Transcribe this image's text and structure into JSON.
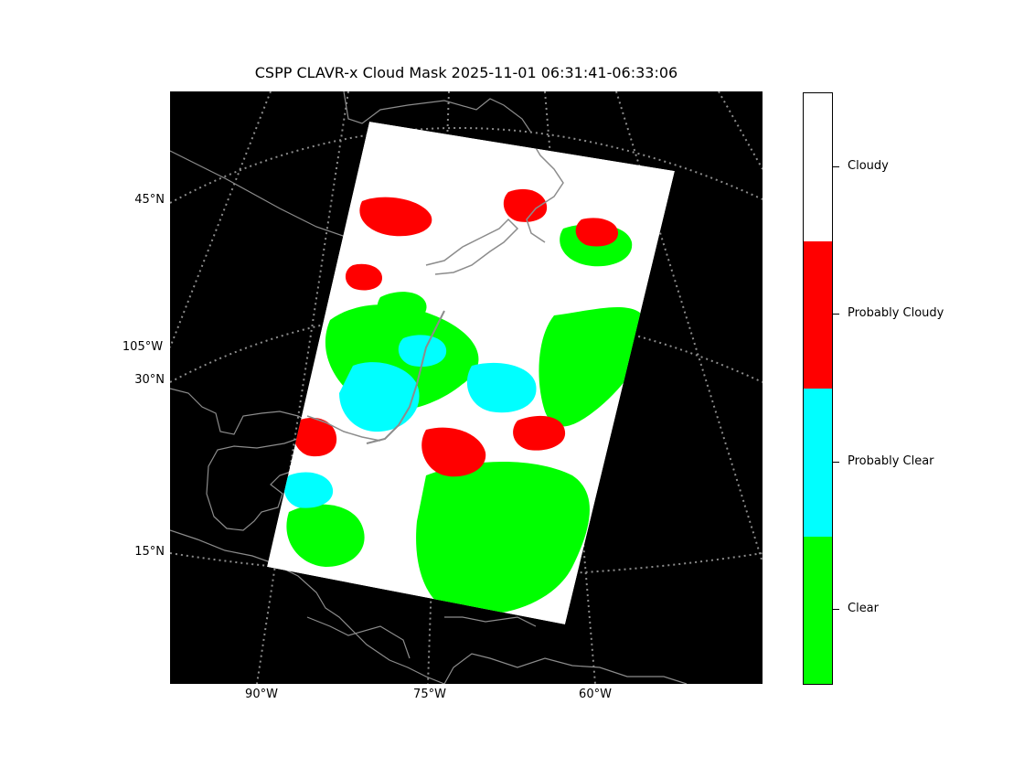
{
  "title": "CSPP CLAVR-x Cloud Mask 2025-11-01 06:31:41-06:33:06",
  "map": {
    "projection": "polar stereographic",
    "background_color": "#000000",
    "coastline_color": "#8c8c8c",
    "gridline_color": "#8c8c8c",
    "gridline_style": "dotted",
    "lat_labels": [
      "45°N",
      "30°N",
      "15°N"
    ],
    "lon_labels_left": [
      "105°W"
    ],
    "lon_labels_bottom": [
      "90°W",
      "75°W",
      "60°W"
    ]
  },
  "colorbar": {
    "categories": [
      {
        "label": "Cloudy",
        "color": "#ffffff"
      },
      {
        "label": "Probably Cloudy",
        "color": "#ff0000"
      },
      {
        "label": "Probably Clear",
        "color": "#00ffff"
      },
      {
        "label": "Clear",
        "color": "#00ff00"
      }
    ]
  }
}
